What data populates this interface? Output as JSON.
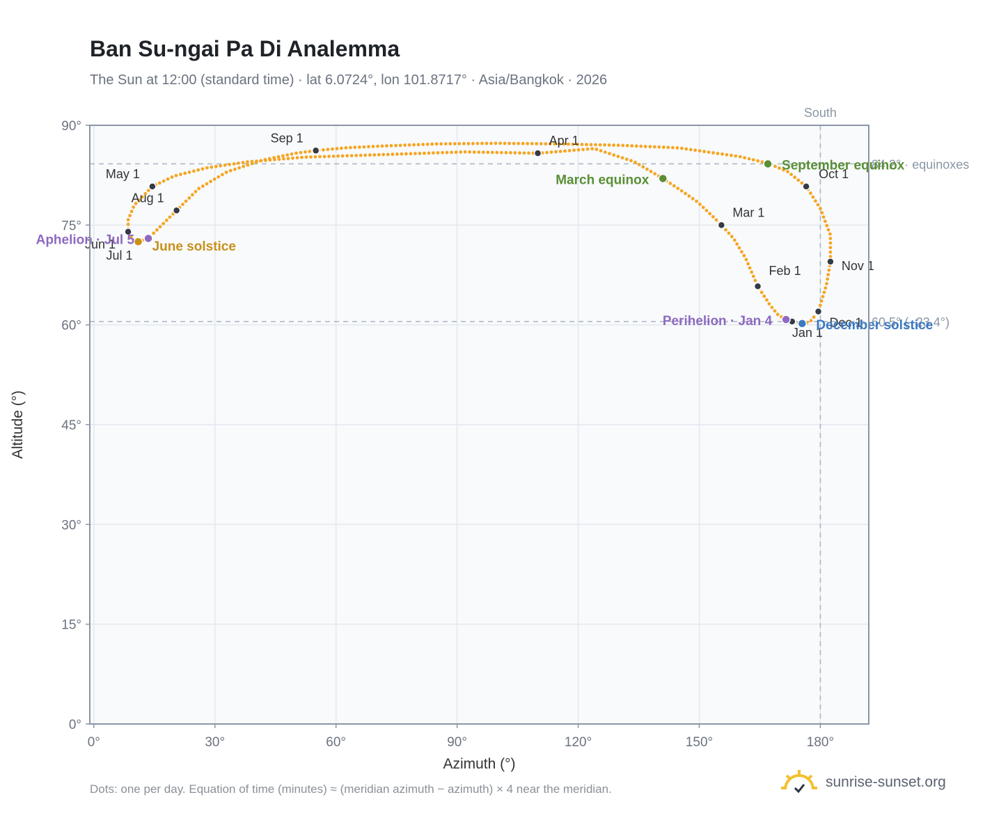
{
  "page": {
    "title": "Ban Su-ngai Pa Di Analemma",
    "subtitle": "The Sun at 12:00 (standard time) · lat 6.0724°, lon 101.8717° · Asia/Bangkok · 2026",
    "footnote": "Dots: one per day. Equation of time (minutes) ≈ (meridian azimuth − azimuth) × 4 near the meridian.",
    "brand": "sunrise-sunset.org"
  },
  "colors": {
    "curve": "#f5a623",
    "month_point": "#343a46",
    "equinox": "#5a8f35",
    "solstice_june": "#c8901a",
    "solstice_december": "#3a78c3",
    "aphelion_perihelion": "#8e6ac0",
    "reference_line": "#aab4c0",
    "plot_bg": "#f8fafc",
    "grid": "#e3e8ee",
    "axis": "#8a96a6"
  },
  "chart_data": {
    "type": "scatter",
    "xlabel": "Azimuth (°)",
    "ylabel": "Altitude (°)",
    "xlim": [
      -1,
      192
    ],
    "ylim": [
      0,
      90
    ],
    "x_ticks": [
      0,
      30,
      60,
      90,
      120,
      150,
      180
    ],
    "x_tick_labels": [
      "0°",
      "30°",
      "60°",
      "90°",
      "120°",
      "150°",
      "180°"
    ],
    "y_ticks": [
      0,
      15,
      30,
      45,
      60,
      75,
      90
    ],
    "y_tick_labels": [
      "0°",
      "15°",
      "30°",
      "45°",
      "60°",
      "75°",
      "90°"
    ],
    "grid": true,
    "series": [
      {
        "marker": "dots (one per day)",
        "note": "analemma path, ordered Jan 1 → Dec 31 (azimuth, altitude)",
        "points": [
          [
            173.5,
            60.5
          ],
          [
            171.5,
            60.8
          ],
          [
            169.5,
            61.5
          ],
          [
            167.5,
            63.0
          ],
          [
            164.5,
            65.8
          ],
          [
            161.5,
            70.0
          ],
          [
            158.5,
            73.0
          ],
          [
            155.5,
            75.0
          ],
          [
            152.5,
            76.8
          ],
          [
            149.5,
            78.5
          ],
          [
            146.0,
            80.0
          ],
          [
            141.0,
            82.0
          ],
          [
            134.0,
            84.5
          ],
          [
            124.0,
            86.5
          ],
          [
            110.0,
            85.8
          ],
          [
            92.0,
            86.0
          ],
          [
            72.0,
            85.6
          ],
          [
            52.0,
            85.2
          ],
          [
            38.0,
            84.5
          ],
          [
            28.0,
            83.6
          ],
          [
            20.0,
            82.4
          ],
          [
            14.5,
            80.8
          ],
          [
            10.0,
            78.0
          ],
          [
            8.5,
            75.8
          ],
          [
            8.5,
            74.0
          ],
          [
            9.5,
            72.8
          ],
          [
            11.0,
            72.5
          ],
          [
            13.5,
            73.0
          ],
          [
            16.0,
            74.5
          ],
          [
            20.5,
            77.2
          ],
          [
            26.0,
            80.5
          ],
          [
            33.0,
            83.0
          ],
          [
            42.0,
            84.8
          ],
          [
            50.0,
            85.8
          ],
          [
            55.0,
            86.2
          ],
          [
            62.0,
            86.6
          ],
          [
            72.0,
            86.9
          ],
          [
            85.0,
            87.2
          ],
          [
            100.0,
            87.3
          ],
          [
            115.0,
            87.2
          ],
          [
            130.0,
            87.0
          ],
          [
            145.0,
            86.6
          ],
          [
            160.0,
            85.3
          ],
          [
            167.0,
            84.3
          ],
          [
            172.0,
            83.0
          ],
          [
            176.5,
            80.8
          ],
          [
            180.0,
            77.5
          ],
          [
            182.5,
            73.5
          ],
          [
            182.5,
            69.5
          ],
          [
            181.5,
            66.0
          ],
          [
            179.5,
            62.0
          ],
          [
            177.5,
            60.5
          ],
          [
            175.5,
            60.1
          ],
          [
            173.5,
            60.5
          ]
        ]
      }
    ],
    "month_markers": [
      {
        "label": "Jan 1",
        "az": 173.0,
        "alt": 60.5
      },
      {
        "label": "Feb 1",
        "az": 164.5,
        "alt": 65.8
      },
      {
        "label": "Mar 1",
        "az": 155.5,
        "alt": 75.0
      },
      {
        "label": "Apr 1",
        "az": 110.0,
        "alt": 85.8
      },
      {
        "label": "May 1",
        "az": 14.5,
        "alt": 80.8
      },
      {
        "label": "Jun 1",
        "az": 8.5,
        "alt": 74.0
      },
      {
        "label": "Jul 1",
        "az": 11.0,
        "alt": 72.5
      },
      {
        "label": "Aug 1",
        "az": 20.5,
        "alt": 77.2
      },
      {
        "label": "Sep 1",
        "az": 55.0,
        "alt": 86.2
      },
      {
        "label": "Oct 1",
        "az": 176.5,
        "alt": 80.8
      },
      {
        "label": "Nov 1",
        "az": 182.5,
        "alt": 69.5
      },
      {
        "label": "Dec 1",
        "az": 179.5,
        "alt": 62.0
      }
    ],
    "events": [
      {
        "label": "March equinox",
        "az": 141.0,
        "alt": 82.0,
        "kind": "equinox"
      },
      {
        "label": "September equinox",
        "az": 167.0,
        "alt": 84.2,
        "kind": "equinox"
      },
      {
        "label": "June solstice",
        "az": 11.0,
        "alt": 72.5,
        "kind": "solstice_june"
      },
      {
        "label": "December solstice",
        "az": 175.5,
        "alt": 60.2,
        "kind": "solstice_december"
      },
      {
        "label": "Aphelion · Jul 5",
        "az": 13.5,
        "alt": 73.0,
        "kind": "aphelion_perihelion"
      },
      {
        "label": "Perihelion · Jan 4",
        "az": 171.5,
        "alt": 60.8,
        "kind": "aphelion_perihelion"
      }
    ],
    "reference_lines": [
      {
        "orientation": "horizontal",
        "value": 84.2,
        "label": "84.2° · equinoxes"
      },
      {
        "orientation": "horizontal",
        "value": 60.5,
        "label": "60.5° (−23.4°)"
      },
      {
        "orientation": "vertical",
        "value": 180,
        "label": "South"
      }
    ]
  }
}
